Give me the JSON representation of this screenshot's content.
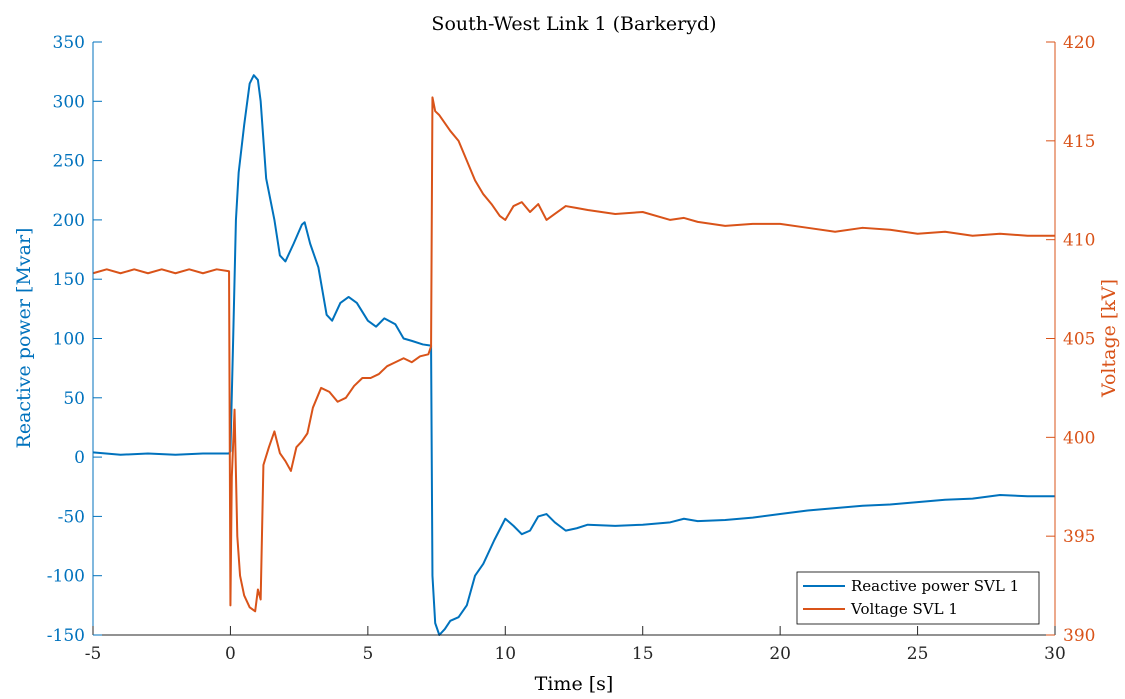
{
  "chart_data": {
    "type": "line",
    "title": "South-West Link 1 (Barkeryd)",
    "xlabel": "Time [s]",
    "xlim": [
      -5,
      30
    ],
    "xticks": [
      -5,
      0,
      5,
      10,
      15,
      20,
      25,
      30
    ],
    "y_left": {
      "label": "Reactive power [Mvar]",
      "lim": [
        -150,
        350
      ],
      "ticks": [
        -150,
        -100,
        -50,
        0,
        50,
        100,
        150,
        200,
        250,
        300,
        350
      ],
      "color": "#0072BD"
    },
    "y_right": {
      "label": "Voltage [kV]",
      "lim": [
        390,
        420
      ],
      "ticks": [
        390,
        395,
        400,
        405,
        410,
        415,
        420
      ],
      "color": "#D95319"
    },
    "grid": false,
    "legend_position": "bottom-right",
    "series": [
      {
        "name": "Reactive power SVL 1",
        "axis": "left",
        "color": "#0072BD",
        "x": [
          -5,
          -4,
          -3,
          -2,
          -1,
          -0.05,
          0,
          0.1,
          0.2,
          0.3,
          0.5,
          0.7,
          0.85,
          1.0,
          1.1,
          1.3,
          1.6,
          1.8,
          2.0,
          2.3,
          2.6,
          2.7,
          2.9,
          3.2,
          3.5,
          3.7,
          4.0,
          4.3,
          4.6,
          5.0,
          5.3,
          5.6,
          6.0,
          6.3,
          6.6,
          7.0,
          7.3,
          7.35,
          7.45,
          7.6,
          7.8,
          8.0,
          8.3,
          8.6,
          8.9,
          9.2,
          9.6,
          10.0,
          10.3,
          10.6,
          10.9,
          11.2,
          11.5,
          11.8,
          12.2,
          12.6,
          13.0,
          14.0,
          15.0,
          16.0,
          16.5,
          17.0,
          18.0,
          19.0,
          20.0,
          21.0,
          22.0,
          23.0,
          24.0,
          25.0,
          26.0,
          27.0,
          28.0,
          29.0,
          30.0
        ],
        "values": [
          4,
          2,
          3,
          2,
          3,
          3,
          5,
          100,
          200,
          240,
          280,
          315,
          322,
          318,
          300,
          235,
          200,
          170,
          165,
          180,
          196,
          198,
          180,
          160,
          120,
          115,
          130,
          135,
          130,
          115,
          110,
          117,
          112,
          100,
          98,
          95,
          94,
          -100,
          -140,
          -150,
          -145,
          -138,
          -135,
          -125,
          -100,
          -90,
          -70,
          -52,
          -58,
          -65,
          -62,
          -50,
          -48,
          -55,
          -62,
          -60,
          -57,
          -58,
          -57,
          -55,
          -52,
          -54,
          -53,
          -51,
          -48,
          -45,
          -43,
          -41,
          -40,
          -38,
          -36,
          -35,
          -32,
          -33,
          -33
        ]
      },
      {
        "name": "Voltage SVL 1",
        "axis": "right",
        "color": "#D95319",
        "x": [
          -5,
          -4.5,
          -4,
          -3.5,
          -3,
          -2.5,
          -2,
          -1.5,
          -1,
          -0.5,
          -0.05,
          0,
          0.05,
          0.15,
          0.25,
          0.35,
          0.5,
          0.7,
          0.9,
          1.0,
          1.1,
          1.2,
          1.4,
          1.6,
          1.8,
          2.0,
          2.2,
          2.4,
          2.6,
          2.8,
          3.0,
          3.3,
          3.6,
          3.9,
          4.2,
          4.5,
          4.8,
          5.1,
          5.4,
          5.7,
          6.0,
          6.3,
          6.6,
          6.9,
          7.2,
          7.3,
          7.35,
          7.45,
          7.6,
          7.8,
          8.0,
          8.3,
          8.6,
          8.9,
          9.2,
          9.5,
          9.8,
          10.0,
          10.3,
          10.6,
          10.9,
          11.2,
          11.5,
          11.8,
          12.2,
          12.6,
          13.0,
          14.0,
          15.0,
          16.0,
          16.5,
          17.0,
          18.0,
          19.0,
          20.0,
          21.0,
          22.0,
          23.0,
          24.0,
          25.0,
          26.0,
          27.0,
          28.0,
          29.0,
          30.0
        ],
        "values": [
          408.3,
          408.5,
          408.3,
          408.5,
          408.3,
          408.5,
          408.3,
          408.5,
          408.3,
          408.5,
          408.4,
          391.5,
          398,
          401.4,
          395,
          393,
          392,
          391.4,
          391.2,
          392.3,
          391.8,
          398.6,
          399.5,
          400.3,
          399.2,
          398.8,
          398.3,
          399.5,
          399.8,
          400.2,
          401.5,
          402.5,
          402.3,
          401.8,
          402,
          402.6,
          403,
          403,
          403.2,
          403.6,
          403.8,
          404,
          403.8,
          404.1,
          404.2,
          404.6,
          417.2,
          416.5,
          416.3,
          415.9,
          415.5,
          415,
          414,
          413,
          412.3,
          411.8,
          411.2,
          411,
          411.7,
          411.9,
          411.4,
          411.8,
          411,
          411.3,
          411.7,
          411.6,
          411.5,
          411.3,
          411.4,
          411,
          411.1,
          410.9,
          410.7,
          410.8,
          410.8,
          410.6,
          410.4,
          410.6,
          410.5,
          410.3,
          410.4,
          410.2,
          410.3,
          410.2,
          410.2
        ]
      }
    ]
  }
}
